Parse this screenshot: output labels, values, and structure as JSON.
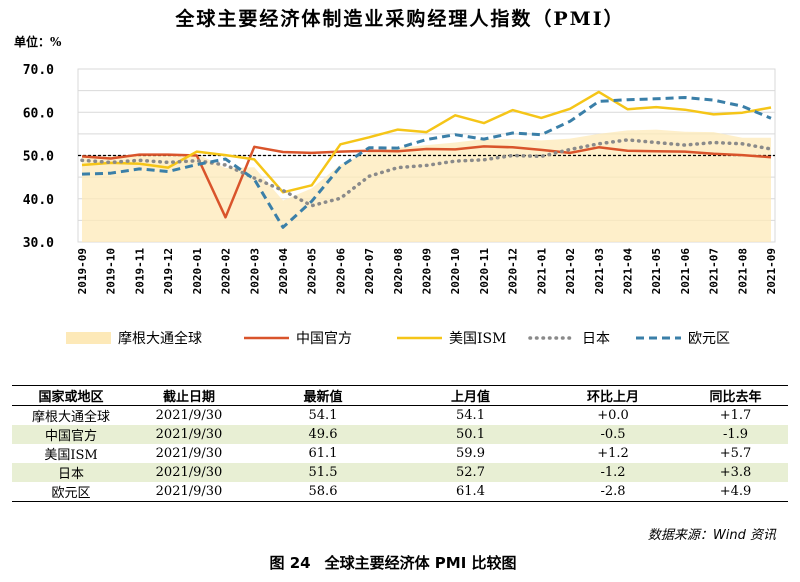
{
  "title": "全球主要经济体制造业采购经理人指数（PMI）",
  "unit_label": "单位：%",
  "chart_data": {
    "type": "line",
    "title": "全球主要经济体制造业采购经理人指数（PMI）",
    "ylabel": "单位：%",
    "ylim": [
      30,
      70
    ],
    "yticks": [
      "30.0",
      "40.0",
      "50.0",
      "60.0",
      "70.0"
    ],
    "grid": true,
    "legend_position": "bottom",
    "reference_line": 50,
    "categories": [
      "2019-09",
      "2019-10",
      "2019-11",
      "2019-12",
      "2020-01",
      "2020-02",
      "2020-03",
      "2020-04",
      "2020-05",
      "2020-06",
      "2020-07",
      "2020-08",
      "2020-09",
      "2020-10",
      "2020-11",
      "2020-12",
      "2021-01",
      "2021-02",
      "2021-03",
      "2021-04",
      "2021-05",
      "2021-06",
      "2021-07",
      "2021-08",
      "2021-09"
    ],
    "series": [
      {
        "name": "摩根大通全球",
        "style": "area",
        "color": "#fde9b8",
        "values": [
          49.7,
          49.8,
          50.3,
          50.1,
          50.4,
          47.1,
          47.3,
          39.6,
          42.4,
          47.9,
          50.8,
          51.8,
          52.4,
          53.0,
          53.8,
          53.8,
          53.5,
          53.9,
          55.0,
          55.8,
          56.0,
          55.5,
          55.4,
          54.1,
          54.1
        ]
      },
      {
        "name": "中国官方",
        "style": "solid",
        "color": "#d9542b",
        "values": [
          49.8,
          49.3,
          50.2,
          50.2,
          50.0,
          35.7,
          52.0,
          50.8,
          50.6,
          50.9,
          51.1,
          51.0,
          51.5,
          51.4,
          52.1,
          51.9,
          51.3,
          50.6,
          51.9,
          51.1,
          51.0,
          50.9,
          50.4,
          50.1,
          49.6
        ]
      },
      {
        "name": "美国ISM",
        "style": "solid",
        "color": "#f5c518",
        "values": [
          47.8,
          48.3,
          48.1,
          47.2,
          50.9,
          50.1,
          49.1,
          41.5,
          43.1,
          52.6,
          54.2,
          56.0,
          55.4,
          59.3,
          57.5,
          60.5,
          58.7,
          60.8,
          64.7,
          60.7,
          61.2,
          60.6,
          59.5,
          59.9,
          61.1
        ]
      },
      {
        "name": "日本",
        "style": "dotted",
        "color": "#8a8a8a",
        "values": [
          48.9,
          48.4,
          48.9,
          48.4,
          48.8,
          47.8,
          44.8,
          41.9,
          38.4,
          40.1,
          45.2,
          47.2,
          47.7,
          48.7,
          49.0,
          50.0,
          49.8,
          51.4,
          52.7,
          53.6,
          53.0,
          52.4,
          53.0,
          52.7,
          51.5
        ]
      },
      {
        "name": "欧元区",
        "style": "dashed",
        "color": "#3a7fa8",
        "values": [
          45.7,
          45.9,
          46.9,
          46.3,
          47.9,
          49.2,
          44.5,
          33.4,
          39.4,
          47.4,
          51.8,
          51.7,
          53.7,
          54.8,
          53.8,
          55.2,
          54.8,
          57.9,
          62.5,
          62.9,
          63.1,
          63.4,
          62.8,
          61.4,
          58.6
        ]
      }
    ]
  },
  "table": {
    "headers": [
      "国家或地区",
      "截止日期",
      "最新值",
      "上月值",
      "环比上月",
      "同比去年"
    ],
    "rows": [
      [
        "摩根大通全球",
        "2021/9/30",
        "54.1",
        "54.1",
        "+0.0",
        "+1.7"
      ],
      [
        "中国官方",
        "2021/9/30",
        "49.6",
        "50.1",
        "-0.5",
        "-1.9"
      ],
      [
        "美国ISM",
        "2021/9/30",
        "61.1",
        "59.9",
        "+1.2",
        "+5.7"
      ],
      [
        "日本",
        "2021/9/30",
        "51.5",
        "52.7",
        "-1.2",
        "+3.8"
      ],
      [
        "欧元区",
        "2021/9/30",
        "58.6",
        "61.4",
        "-2.8",
        "+4.9"
      ]
    ]
  },
  "source": "数据来源：Wind 资讯",
  "caption": {
    "number": "图 24",
    "text": "全球主要经济体 PMI 比较图"
  }
}
